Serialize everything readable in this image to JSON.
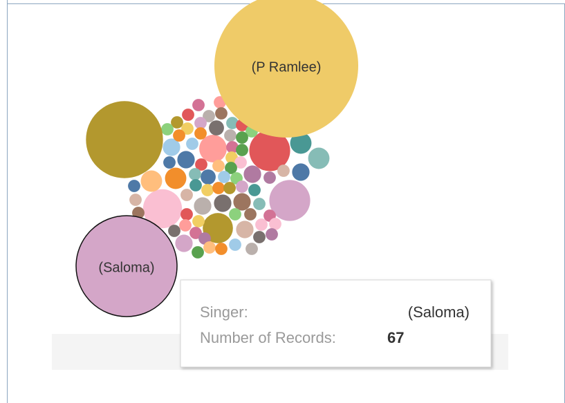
{
  "chart_data": {
    "type": "packed-bubble",
    "bubbles": [
      {
        "name": "(P Ramlee)",
        "value": 136,
        "color": "#efcb68"
      },
      {
        "value": 39,
        "color": "#b3982e"
      },
      {
        "name": "(Saloma)",
        "value": 67,
        "color": "#d4a6c8"
      },
      {
        "value": 11,
        "color": "#e15759"
      },
      {
        "value": 11,
        "color": "#d4a6c8"
      },
      {
        "value": 10,
        "color": "#fabfd2"
      },
      {
        "value": 6,
        "color": "#b3982e"
      },
      {
        "value": 5,
        "color": "#ff9d9a"
      },
      {
        "value": 3,
        "color": "#499894"
      },
      {
        "value": 3,
        "color": "#86bcb6"
      },
      {
        "value": 2,
        "color": "#4e79a7"
      },
      {
        "value": 3,
        "color": "#f28e2b"
      },
      {
        "value": 3,
        "color": "#ffbe7d"
      },
      {
        "value": 2,
        "color": "#4e79a7"
      },
      {
        "value": 2,
        "color": "#a0cbe8"
      },
      {
        "value": 2,
        "color": "#b07aa1"
      },
      {
        "value": 2,
        "color": "#bab0ac"
      },
      {
        "value": 2,
        "color": "#79706e"
      },
      {
        "value": 2,
        "color": "#9c755f"
      },
      {
        "value": 2,
        "color": "#d7b5a6"
      },
      {
        "value": 1,
        "color": "#86bcb6"
      },
      {
        "value": 2,
        "color": "#d4a6c8"
      },
      {
        "value": 1,
        "color": "#bab0ac"
      },
      {
        "value": 1,
        "color": "#a0cbe8"
      },
      {
        "value": 1.5,
        "color": "#79706e"
      },
      {
        "value": 1,
        "color": "#d37295"
      },
      {
        "value": 1,
        "color": "#d7b5a6"
      },
      {
        "value": 1.5,
        "color": "#4e79a7"
      },
      {
        "value": 1,
        "color": "#a0cbe8"
      },
      {
        "value": 1,
        "color": "#ff9d9a"
      },
      {
        "value": 1,
        "color": "#bab0ac"
      },
      {
        "value": 1,
        "color": "#9c755f"
      },
      {
        "value": 1,
        "color": "#e15759"
      },
      {
        "value": 1,
        "color": "#b3982e"
      },
      {
        "value": 1,
        "color": "#8cd17d"
      },
      {
        "value": 1,
        "color": "#f1ce63"
      },
      {
        "value": 1,
        "color": "#d4a6c8"
      },
      {
        "value": 1,
        "color": "#86bcb6"
      },
      {
        "value": 1,
        "color": "#e15759"
      },
      {
        "value": 1,
        "color": "#8cd17d"
      },
      {
        "value": 1,
        "color": "#bab0ac"
      },
      {
        "value": 1,
        "color": "#59a14f"
      },
      {
        "value": 1,
        "color": "#f28e2b"
      },
      {
        "value": 1,
        "color": "#f28e2b"
      },
      {
        "value": 1,
        "color": "#d37295"
      },
      {
        "value": 1,
        "color": "#59a14f"
      },
      {
        "value": 1,
        "color": "#f1ce63"
      },
      {
        "value": 1,
        "color": "#fabfd2"
      },
      {
        "value": 1,
        "color": "#4e79a7"
      },
      {
        "value": 1,
        "color": "#e15759"
      },
      {
        "value": 1,
        "color": "#ffbe7d"
      },
      {
        "value": 1,
        "color": "#59a14f"
      },
      {
        "value": 1,
        "color": "#d7b5a6"
      },
      {
        "value": 1,
        "color": "#b07aa1"
      },
      {
        "value": 1,
        "color": "#86bcb6"
      },
      {
        "value": 1,
        "color": "#a0cbe8"
      },
      {
        "value": 1,
        "color": "#8cd17d"
      },
      {
        "value": 1,
        "color": "#4e79a7"
      },
      {
        "value": 1,
        "color": "#499894"
      },
      {
        "value": 1,
        "color": "#f1ce63"
      },
      {
        "value": 1,
        "color": "#f28e2b"
      },
      {
        "value": 1,
        "color": "#b3982e"
      },
      {
        "value": 1,
        "color": "#d4a6c8"
      },
      {
        "value": 1,
        "color": "#499894"
      },
      {
        "value": 1,
        "color": "#d7b5a6"
      },
      {
        "value": 1,
        "color": "#d37295"
      },
      {
        "value": 1,
        "color": "#9c755f"
      },
      {
        "value": 1,
        "color": "#8cd17d"
      },
      {
        "value": 1,
        "color": "#e15759"
      },
      {
        "value": 1,
        "color": "#f1ce63"
      },
      {
        "value": 1,
        "color": "#ff9d9a"
      },
      {
        "value": 1,
        "color": "#79706e"
      },
      {
        "value": 1,
        "color": "#d37295"
      },
      {
        "value": 1,
        "color": "#b07aa1"
      },
      {
        "value": 1,
        "color": "#fabfd2"
      },
      {
        "value": 1,
        "color": "#fabfd2"
      },
      {
        "value": 1,
        "color": "#b07aa1"
      },
      {
        "value": 1,
        "color": "#79706e"
      },
      {
        "value": 1,
        "color": "#9c755f"
      },
      {
        "value": 1,
        "color": "#59a14f"
      },
      {
        "value": 1,
        "color": "#ffbe7d"
      },
      {
        "value": 1,
        "color": "#f28e2b"
      }
    ],
    "tooltip": {
      "singer_label": "Singer:",
      "records_label": "Number of Records:"
    }
  }
}
